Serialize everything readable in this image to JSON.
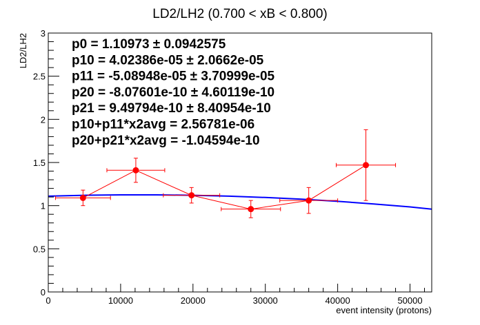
{
  "chart_data": {
    "type": "scatter",
    "title": "LD2/LH2 (0.700 < xB < 0.800)",
    "xlabel": "event intensity (protons)",
    "ylabel": "LD2/LH2",
    "xlim": [
      0,
      53000
    ],
    "ylim": [
      0,
      3
    ],
    "x_ticks": [
      0,
      10000,
      20000,
      30000,
      40000,
      50000
    ],
    "x_tick_labels": [
      "0",
      "10000",
      "20000",
      "30000",
      "40000",
      "50000"
    ],
    "y_ticks": [
      0,
      0.5,
      1,
      1.5,
      2,
      2.5,
      3
    ],
    "y_tick_labels": [
      "0",
      "0.5",
      "1",
      "1.5",
      "2",
      "2.5",
      "3"
    ],
    "grid": false,
    "series": [
      {
        "kind": "points_with_errors",
        "color": "#ff0000",
        "points": [
          {
            "x": 4800,
            "xerr": 3800,
            "y": 1.09,
            "yerr": 0.09
          },
          {
            "x": 12100,
            "xerr": 4000,
            "y": 1.41,
            "yerr": 0.14
          },
          {
            "x": 19800,
            "xerr": 3900,
            "y": 1.12,
            "yerr": 0.09
          },
          {
            "x": 28000,
            "xerr": 4100,
            "y": 0.96,
            "yerr": 0.1
          },
          {
            "x": 36000,
            "xerr": 4000,
            "y": 1.06,
            "yerr": 0.15
          },
          {
            "x": 43900,
            "xerr": 4100,
            "y": 1.47,
            "yerr": 0.41
          }
        ]
      },
      {
        "kind": "fit_curve",
        "color": "#0000ff",
        "x": [
          0,
          5000,
          10000,
          15000,
          20000,
          25000,
          30000,
          35000,
          40000,
          45000,
          50000,
          53000
        ],
        "y": [
          1.11,
          1.12,
          1.125,
          1.125,
          1.12,
          1.11,
          1.095,
          1.075,
          1.05,
          1.02,
          0.985,
          0.96
        ]
      }
    ],
    "stats": [
      {
        "label": "p0 = 1.10973",
        "err": "0.0942575"
      },
      {
        "label": "p10 = 4.02386e-05",
        "err": "2.0662e-05"
      },
      {
        "label": "p11 = -5.08948e-05",
        "err": "3.70999e-05"
      },
      {
        "label": "p20 = -8.07601e-10",
        "err": "4.60119e-10"
      },
      {
        "label": "p21 = 9.49794e-10",
        "err": "8.40954e-10"
      },
      {
        "label": "p10+p11*x2avg = 2.56781e-06",
        "err": ""
      },
      {
        "label": "p20+p21*x2avg = -1.04594e-10",
        "err": ""
      }
    ],
    "pm_symbol": "±"
  }
}
